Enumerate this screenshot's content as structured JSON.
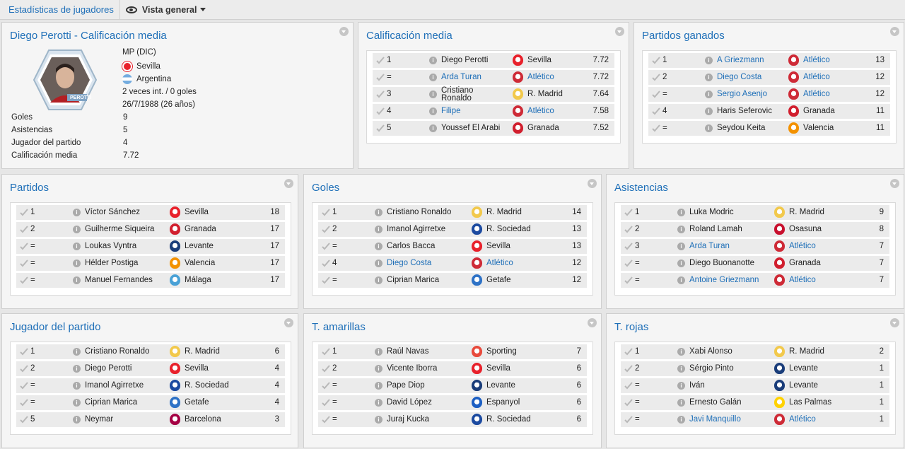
{
  "topbar": {
    "title": "Estadísticas de jugadores",
    "view_label": "Vista general"
  },
  "colors": {
    "accent": "#1e6fb8",
    "sevilla": "#e8212b",
    "atletico": "#ce2b37",
    "rmadrid": "#f2c94c",
    "granada": "#d11f2e",
    "valencia": "#f39200",
    "levante": "#1a3d7a",
    "malaga": "#49a1d6",
    "rsociedad": "#1c4aa0",
    "getafe": "#2e72c6",
    "osasuna": "#c8102e",
    "sporting": "#e84a3c",
    "espanyol": "#1d5fc3",
    "barcelona": "#a50044",
    "laspalmas": "#ffd200"
  },
  "profile": {
    "title": "Diego Perotti - Calificación media",
    "position": "MP (DIC)",
    "club": "Sevilla",
    "nation": "Argentina",
    "caps": "2 veces int. / 0 goles",
    "dob": "26/7/1988 (26 años)",
    "photo_caption": "PEROTTI",
    "stats": [
      {
        "label": "Goles",
        "value": "9"
      },
      {
        "label": "Asistencias",
        "value": "5"
      },
      {
        "label": "Jugador del partido",
        "value": "4"
      },
      {
        "label": "Calificación media",
        "value": "7.72"
      }
    ]
  },
  "panels": {
    "calificacion": {
      "title": "Calificación media",
      "rows": [
        {
          "rank": "1",
          "name": "Diego Perotti",
          "link": false,
          "club": "Sevilla",
          "club_link": false,
          "badge": "sevilla",
          "value": "7.72"
        },
        {
          "rank": "=",
          "name": "Arda Turan",
          "link": true,
          "club": "Atlético",
          "club_link": true,
          "badge": "atletico",
          "value": "7.72"
        },
        {
          "rank": "3",
          "name": "Cristiano Ronaldo",
          "link": false,
          "club": "R. Madrid",
          "club_link": false,
          "badge": "rmadrid",
          "value": "7.64",
          "two_line": true
        },
        {
          "rank": "4",
          "name": "Filipe",
          "link": true,
          "club": "Atlético",
          "club_link": true,
          "badge": "atletico",
          "value": "7.58"
        },
        {
          "rank": "5",
          "name": "Youssef El Arabi",
          "link": false,
          "club": "Granada",
          "club_link": false,
          "badge": "granada",
          "value": "7.52"
        }
      ]
    },
    "ganados": {
      "title": "Partidos ganados",
      "rows": [
        {
          "rank": "1",
          "name": "A Griezmann",
          "link": true,
          "club": "Atlético",
          "club_link": true,
          "badge": "atletico",
          "value": "13"
        },
        {
          "rank": "2",
          "name": "Diego Costa",
          "link": true,
          "club": "Atlético",
          "club_link": true,
          "badge": "atletico",
          "value": "12"
        },
        {
          "rank": "=",
          "name": "Sergio Asenjo",
          "link": true,
          "club": "Atlético",
          "club_link": true,
          "badge": "atletico",
          "value": "12"
        },
        {
          "rank": "4",
          "name": "Haris Seferovic",
          "link": false,
          "club": "Granada",
          "club_link": false,
          "badge": "granada",
          "value": "11"
        },
        {
          "rank": "=",
          "name": "Seydou Keita",
          "link": false,
          "club": "Valencia",
          "club_link": false,
          "badge": "valencia",
          "value": "11"
        }
      ]
    },
    "partidos": {
      "title": "Partidos",
      "rows": [
        {
          "rank": "1",
          "name": "Víctor Sánchez",
          "link": false,
          "club": "Sevilla",
          "club_link": false,
          "badge": "sevilla",
          "value": "18"
        },
        {
          "rank": "2",
          "name": "Guilherme Siqueira",
          "link": false,
          "club": "Granada",
          "club_link": false,
          "badge": "granada",
          "value": "17"
        },
        {
          "rank": "=",
          "name": "Loukas Vyntra",
          "link": false,
          "club": "Levante",
          "club_link": false,
          "badge": "levante",
          "value": "17"
        },
        {
          "rank": "=",
          "name": "Hélder Postiga",
          "link": false,
          "club": "Valencia",
          "club_link": false,
          "badge": "valencia",
          "value": "17"
        },
        {
          "rank": "=",
          "name": "Manuel Fernandes",
          "link": false,
          "club": "Málaga",
          "club_link": false,
          "badge": "malaga",
          "value": "17"
        }
      ]
    },
    "goles": {
      "title": "Goles",
      "rows": [
        {
          "rank": "1",
          "name": "Cristiano Ronaldo",
          "link": false,
          "club": "R. Madrid",
          "club_link": false,
          "badge": "rmadrid",
          "value": "14"
        },
        {
          "rank": "2",
          "name": "Imanol Agirretxe",
          "link": false,
          "club": "R. Sociedad",
          "club_link": false,
          "badge": "rsociedad",
          "value": "13"
        },
        {
          "rank": "=",
          "name": "Carlos Bacca",
          "link": false,
          "club": "Sevilla",
          "club_link": false,
          "badge": "sevilla",
          "value": "13"
        },
        {
          "rank": "4",
          "name": "Diego Costa",
          "link": true,
          "club": "Atlético",
          "club_link": true,
          "badge": "atletico",
          "value": "12"
        },
        {
          "rank": "=",
          "name": "Ciprian Marica",
          "link": false,
          "club": "Getafe",
          "club_link": false,
          "badge": "getafe",
          "value": "12"
        }
      ]
    },
    "asistencias": {
      "title": "Asistencias",
      "rows": [
        {
          "rank": "1",
          "name": "Luka Modric",
          "link": false,
          "club": "R. Madrid",
          "club_link": false,
          "badge": "rmadrid",
          "value": "9"
        },
        {
          "rank": "2",
          "name": "Roland Lamah",
          "link": false,
          "club": "Osasuna",
          "club_link": false,
          "badge": "osasuna",
          "value": "8"
        },
        {
          "rank": "3",
          "name": "Arda Turan",
          "link": true,
          "club": "Atlético",
          "club_link": true,
          "badge": "atletico",
          "value": "7"
        },
        {
          "rank": "=",
          "name": "Diego Buonanotte",
          "link": false,
          "club": "Granada",
          "club_link": false,
          "badge": "granada",
          "value": "7"
        },
        {
          "rank": "=",
          "name": "Antoine Griezmann",
          "link": true,
          "club": "Atlético",
          "club_link": true,
          "badge": "atletico",
          "value": "7"
        }
      ]
    },
    "jugador": {
      "title": "Jugador del partido",
      "rows": [
        {
          "rank": "1",
          "name": "Cristiano Ronaldo",
          "link": false,
          "club": "R. Madrid",
          "club_link": false,
          "badge": "rmadrid",
          "value": "6"
        },
        {
          "rank": "2",
          "name": "Diego Perotti",
          "link": false,
          "club": "Sevilla",
          "club_link": false,
          "badge": "sevilla",
          "value": "4"
        },
        {
          "rank": "=",
          "name": "Imanol Agirretxe",
          "link": false,
          "club": "R. Sociedad",
          "club_link": false,
          "badge": "rsociedad",
          "value": "4"
        },
        {
          "rank": "=",
          "name": "Ciprian Marica",
          "link": false,
          "club": "Getafe",
          "club_link": false,
          "badge": "getafe",
          "value": "4"
        },
        {
          "rank": "5",
          "name": "Neymar",
          "link": false,
          "club": "Barcelona",
          "club_link": false,
          "badge": "barcelona",
          "value": "3"
        }
      ]
    },
    "amarillas": {
      "title": "T. amarillas",
      "rows": [
        {
          "rank": "1",
          "name": "Raúl Navas",
          "link": false,
          "club": "Sporting",
          "club_link": false,
          "badge": "sporting",
          "value": "7"
        },
        {
          "rank": "2",
          "name": "Vicente Iborra",
          "link": false,
          "club": "Sevilla",
          "club_link": false,
          "badge": "sevilla",
          "value": "6"
        },
        {
          "rank": "=",
          "name": "Pape Diop",
          "link": false,
          "club": "Levante",
          "club_link": false,
          "badge": "levante",
          "value": "6"
        },
        {
          "rank": "=",
          "name": "David López",
          "link": false,
          "club": "Espanyol",
          "club_link": false,
          "badge": "espanyol",
          "value": "6"
        },
        {
          "rank": "=",
          "name": "Juraj Kucka",
          "link": false,
          "club": "R. Sociedad",
          "club_link": false,
          "badge": "rsociedad",
          "value": "6"
        }
      ]
    },
    "rojas": {
      "title": "T. rojas",
      "rows": [
        {
          "rank": "1",
          "name": "Xabi Alonso",
          "link": false,
          "club": "R. Madrid",
          "club_link": false,
          "badge": "rmadrid",
          "value": "2"
        },
        {
          "rank": "2",
          "name": "Sérgio Pinto",
          "link": false,
          "club": "Levante",
          "club_link": false,
          "badge": "levante",
          "value": "1"
        },
        {
          "rank": "=",
          "name": "Iván",
          "link": false,
          "club": "Levante",
          "club_link": false,
          "badge": "levante",
          "value": "1"
        },
        {
          "rank": "=",
          "name": "Ernesto Galán",
          "link": false,
          "club": "Las Palmas",
          "club_link": false,
          "badge": "laspalmas",
          "value": "1"
        },
        {
          "rank": "=",
          "name": "Javi Manquillo",
          "link": true,
          "club": "Atlético",
          "club_link": true,
          "badge": "atletico",
          "value": "1"
        }
      ]
    }
  }
}
